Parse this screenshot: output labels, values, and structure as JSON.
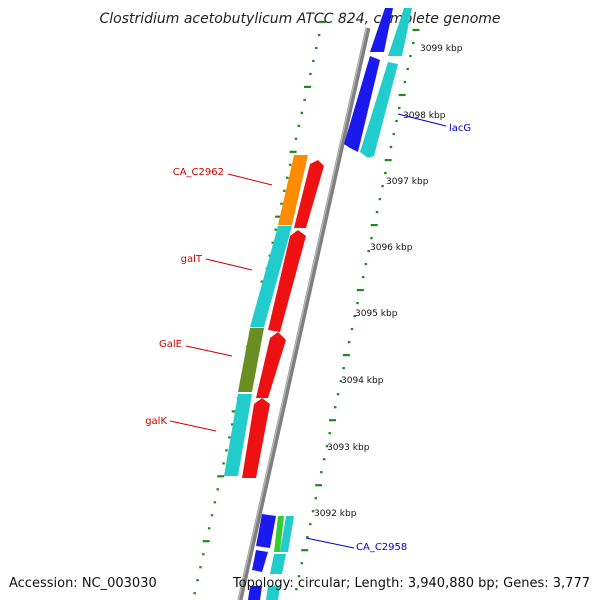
{
  "title": "Clostridium acetobutylicum ATCC 824, complete genome",
  "accession": "Accession: NC_003030",
  "topology": "Topology: circular; Length: 3,940,880 bp; Genes: 3,777",
  "colors": {
    "backbone": "#8a8a8a",
    "tick": "#1f8a1f",
    "blue": "#1a1aee",
    "cyan": "#22cccc",
    "red": "#ee1111",
    "orange": "#ff8c00",
    "olive": "#6b8e23",
    "green": "#33cc33",
    "label_red": "#cc0000",
    "label_blue": "#0000cc"
  },
  "kbp_labels": [
    "3099 kbp",
    "3098 kbp",
    "3097 kbp",
    "3096 kbp",
    "3095 kbp",
    "3094 kbp",
    "3093 kbp",
    "3092 kbp"
  ],
  "gene_labels": {
    "lacG": "lacG",
    "ca_c2962": "CA_C2962",
    "galT": "galT",
    "galE": "GalE",
    "galK": "galK",
    "ca_c2958": "CA_C2958"
  }
}
